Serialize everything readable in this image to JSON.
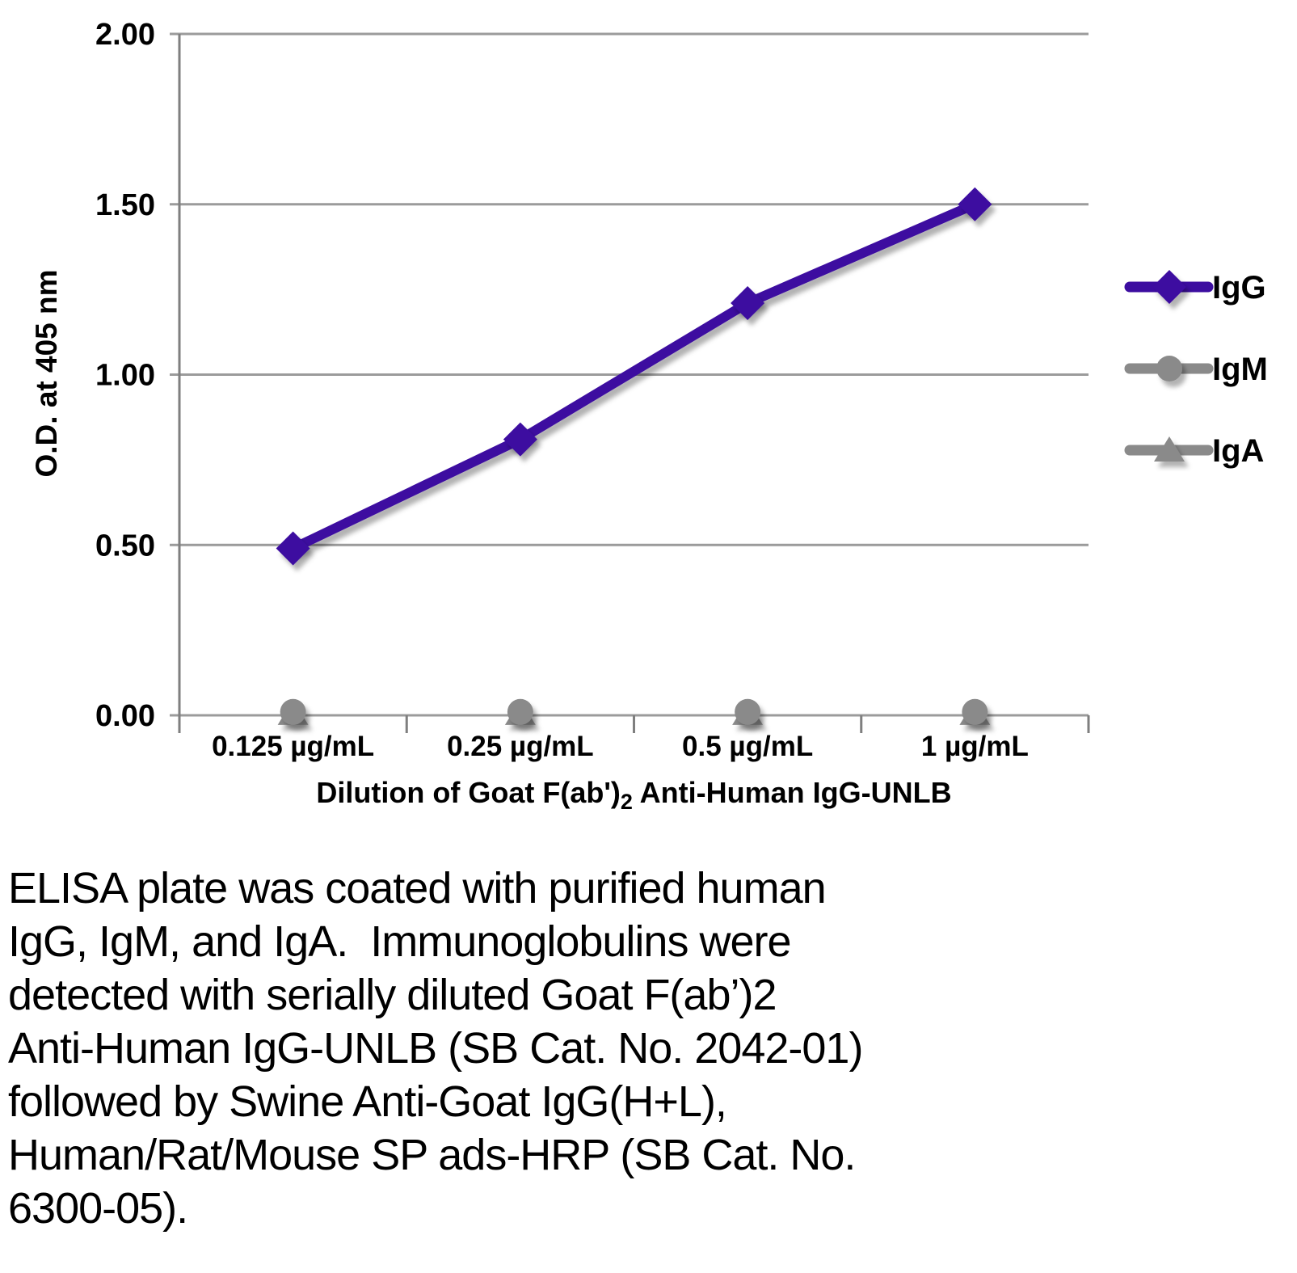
{
  "chart_data": {
    "type": "line",
    "categories": [
      "0.125 µg/mL",
      "0.25 µg/mL",
      "0.5 µg/mL",
      "1 µg/mL"
    ],
    "series": [
      {
        "name": "IgA",
        "values": [
          0.005,
          0.005,
          0.005,
          0.005
        ],
        "color": "#8a8a8a",
        "marker": "triangle"
      },
      {
        "name": "IgM",
        "values": [
          0.01,
          0.01,
          0.01,
          0.01
        ],
        "color": "#8a8a8a",
        "marker": "circle"
      },
      {
        "name": "IgG",
        "values": [
          0.49,
          0.81,
          1.21,
          1.5
        ],
        "color": "#3c0da0",
        "marker": "diamond"
      }
    ],
    "legend_order": [
      "IgG",
      "IgM",
      "IgA"
    ],
    "legend_position": "right",
    "title": "",
    "ylabel": "O.D. at 405 nm",
    "xlabel_parts": {
      "prefix": "Dilution of Goat F(ab')",
      "sub": "2",
      "suffix": " Anti-Human IgG-UNLB"
    },
    "ylim": [
      0,
      2
    ],
    "yticks": [
      {
        "value": 0.0,
        "label": "0.00"
      },
      {
        "value": 0.5,
        "label": "0.50"
      },
      {
        "value": 1.0,
        "label": "1.00"
      },
      {
        "value": 1.5,
        "label": "1.50"
      },
      {
        "value": 2.0,
        "label": "2.00"
      }
    ],
    "grid": true,
    "colors": {
      "grid": "#9b9b9b",
      "axis": "#7f7f7f",
      "text": "#000000"
    }
  },
  "caption": {
    "lines": [
      "ELISA plate was coated with purified human",
      "IgG, IgM, and IgA.  Immunoglobulins were",
      "detected with serially diluted Goat F(ab’)2",
      "Anti-Human IgG-UNLB (SB Cat. No. 2042-01)",
      "followed by Swine Anti-Goat IgG(H+L),",
      "Human/Rat/Mouse SP ads-HRP (SB Cat. No.",
      "6300-05)."
    ]
  }
}
